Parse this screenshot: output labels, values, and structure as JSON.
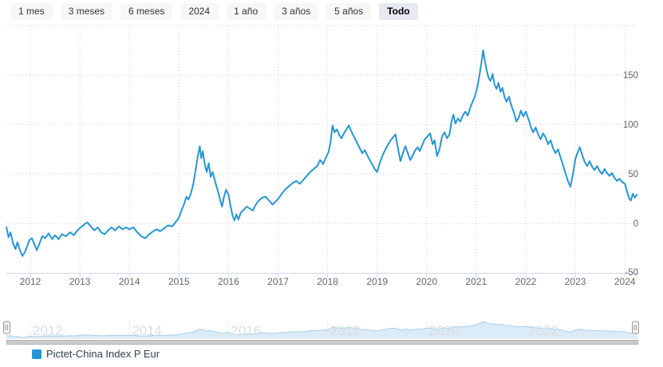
{
  "range_selector": {
    "buttons": [
      {
        "label": "1 mes",
        "selected": false
      },
      {
        "label": "3 meses",
        "selected": false
      },
      {
        "label": "6 meses",
        "selected": false
      },
      {
        "label": "2024",
        "selected": false
      },
      {
        "label": "1 año",
        "selected": false
      },
      {
        "label": "3 años",
        "selected": false
      },
      {
        "label": "5 años",
        "selected": false
      },
      {
        "label": "Todo",
        "selected": true
      }
    ]
  },
  "legend": {
    "items": [
      {
        "label": "Pictet-China Index P Eur",
        "color": "#2796d3"
      }
    ]
  },
  "colors": {
    "series": "#2796d3",
    "grid_dots": "#cccccc",
    "axis_line": "#ccd6eb",
    "tick_label": "#666666",
    "navigator_fill": "#dcebf8",
    "navigator_line": "#a6d0ed",
    "navigator_grid": "#ededed",
    "navigator_label": "#d9dee3",
    "scrollbar_thumb": "#cccccc",
    "scrollbar_border": "#b3b3b3",
    "scrollbar_track": "#f2f2f2",
    "handle_fill": "#f2f2f2",
    "handle_stroke": "#999999"
  },
  "chart_data": {
    "type": "line",
    "title": "",
    "xlabel": "",
    "ylabel": "",
    "grid": "dotted",
    "legend_position": "bottom-left",
    "xlim": [
      2011.45,
      2024.3
    ],
    "ylim": [
      -50,
      200
    ],
    "x_ticks": [
      2012,
      2013,
      2014,
      2015,
      2016,
      2017,
      2018,
      2019,
      2020,
      2021,
      2022,
      2023,
      2024
    ],
    "y_ticks": [
      150,
      100,
      50,
      0,
      -50
    ],
    "grid_values": [
      200,
      150,
      100,
      50,
      0
    ],
    "navigator_ticks": [
      2012,
      2014,
      2016,
      2018,
      2020,
      2022
    ],
    "series": [
      {
        "name": "Pictet-China Index P Eur",
        "color": "#2796d3",
        "points": [
          [
            2011.52,
            -4
          ],
          [
            2011.56,
            -14
          ],
          [
            2011.6,
            -9
          ],
          [
            2011.65,
            -20
          ],
          [
            2011.7,
            -26
          ],
          [
            2011.74,
            -19
          ],
          [
            2011.79,
            -27
          ],
          [
            2011.84,
            -33
          ],
          [
            2011.89,
            -29
          ],
          [
            2011.93,
            -24
          ],
          [
            2011.98,
            -17
          ],
          [
            2012.03,
            -15
          ],
          [
            2012.08,
            -21
          ],
          [
            2012.13,
            -27
          ],
          [
            2012.18,
            -21
          ],
          [
            2012.24,
            -13
          ],
          [
            2012.3,
            -15
          ],
          [
            2012.37,
            -10
          ],
          [
            2012.44,
            -16
          ],
          [
            2012.5,
            -12
          ],
          [
            2012.57,
            -16
          ],
          [
            2012.64,
            -11
          ],
          [
            2012.72,
            -13
          ],
          [
            2012.8,
            -9
          ],
          [
            2012.88,
            -12
          ],
          [
            2012.95,
            -7
          ],
          [
            2013.02,
            -4
          ],
          [
            2013.09,
            -1
          ],
          [
            2013.15,
            1
          ],
          [
            2013.22,
            -3
          ],
          [
            2013.29,
            -7
          ],
          [
            2013.36,
            -4
          ],
          [
            2013.43,
            -9
          ],
          [
            2013.5,
            -11
          ],
          [
            2013.57,
            -7
          ],
          [
            2013.64,
            -4
          ],
          [
            2013.71,
            -7
          ],
          [
            2013.79,
            -3
          ],
          [
            2013.86,
            -6
          ],
          [
            2013.93,
            -4
          ],
          [
            2014.0,
            -6
          ],
          [
            2014.08,
            -4
          ],
          [
            2014.16,
            -9
          ],
          [
            2014.24,
            -13
          ],
          [
            2014.32,
            -15
          ],
          [
            2014.4,
            -11
          ],
          [
            2014.48,
            -8
          ],
          [
            2014.55,
            -6
          ],
          [
            2014.62,
            -8
          ],
          [
            2014.7,
            -5
          ],
          [
            2014.78,
            -2
          ],
          [
            2014.86,
            -3
          ],
          [
            2014.93,
            1
          ],
          [
            2015.0,
            6
          ],
          [
            2015.05,
            13
          ],
          [
            2015.1,
            19
          ],
          [
            2015.15,
            27
          ],
          [
            2015.19,
            24
          ],
          [
            2015.24,
            30
          ],
          [
            2015.29,
            40
          ],
          [
            2015.34,
            55
          ],
          [
            2015.38,
            68
          ],
          [
            2015.42,
            78
          ],
          [
            2015.45,
            66
          ],
          [
            2015.48,
            73
          ],
          [
            2015.52,
            60
          ],
          [
            2015.56,
            52
          ],
          [
            2015.6,
            61
          ],
          [
            2015.64,
            47
          ],
          [
            2015.68,
            52
          ],
          [
            2015.72,
            44
          ],
          [
            2015.76,
            37
          ],
          [
            2015.8,
            30
          ],
          [
            2015.84,
            22
          ],
          [
            2015.87,
            17
          ],
          [
            2015.91,
            27
          ],
          [
            2015.95,
            34
          ],
          [
            2016.0,
            29
          ],
          [
            2016.04,
            18
          ],
          [
            2016.08,
            8
          ],
          [
            2016.12,
            3
          ],
          [
            2016.16,
            9
          ],
          [
            2016.2,
            4
          ],
          [
            2016.25,
            11
          ],
          [
            2016.31,
            14
          ],
          [
            2016.37,
            17
          ],
          [
            2016.43,
            15
          ],
          [
            2016.49,
            13
          ],
          [
            2016.55,
            19
          ],
          [
            2016.61,
            23
          ],
          [
            2016.68,
            26
          ],
          [
            2016.75,
            27
          ],
          [
            2016.82,
            23
          ],
          [
            2016.89,
            19
          ],
          [
            2016.95,
            22
          ],
          [
            2017.02,
            26
          ],
          [
            2017.09,
            31
          ],
          [
            2017.16,
            35
          ],
          [
            2017.23,
            38
          ],
          [
            2017.3,
            41
          ],
          [
            2017.37,
            43
          ],
          [
            2017.44,
            40
          ],
          [
            2017.51,
            44
          ],
          [
            2017.58,
            48
          ],
          [
            2017.65,
            52
          ],
          [
            2017.72,
            55
          ],
          [
            2017.79,
            58
          ],
          [
            2017.85,
            64
          ],
          [
            2017.91,
            60
          ],
          [
            2017.96,
            66
          ],
          [
            2018.02,
            72
          ],
          [
            2018.06,
            82
          ],
          [
            2018.1,
            99
          ],
          [
            2018.14,
            92
          ],
          [
            2018.19,
            95
          ],
          [
            2018.24,
            89
          ],
          [
            2018.28,
            86
          ],
          [
            2018.33,
            91
          ],
          [
            2018.38,
            95
          ],
          [
            2018.43,
            99
          ],
          [
            2018.48,
            93
          ],
          [
            2018.53,
            88
          ],
          [
            2018.58,
            83
          ],
          [
            2018.64,
            77
          ],
          [
            2018.7,
            71
          ],
          [
            2018.75,
            74
          ],
          [
            2018.8,
            69
          ],
          [
            2018.85,
            64
          ],
          [
            2018.9,
            60
          ],
          [
            2018.95,
            55
          ],
          [
            2019.0,
            52
          ],
          [
            2019.06,
            62
          ],
          [
            2019.12,
            70
          ],
          [
            2019.19,
            77
          ],
          [
            2019.26,
            83
          ],
          [
            2019.32,
            87
          ],
          [
            2019.37,
            90
          ],
          [
            2019.42,
            76
          ],
          [
            2019.47,
            63
          ],
          [
            2019.52,
            71
          ],
          [
            2019.57,
            78
          ],
          [
            2019.62,
            71
          ],
          [
            2019.67,
            64
          ],
          [
            2019.72,
            69
          ],
          [
            2019.77,
            74
          ],
          [
            2019.82,
            77
          ],
          [
            2019.86,
            73
          ],
          [
            2019.91,
            79
          ],
          [
            2019.96,
            85
          ],
          [
            2020.02,
            88
          ],
          [
            2020.07,
            91
          ],
          [
            2020.12,
            80
          ],
          [
            2020.16,
            84
          ],
          [
            2020.21,
            68
          ],
          [
            2020.26,
            75
          ],
          [
            2020.31,
            88
          ],
          [
            2020.36,
            92
          ],
          [
            2020.41,
            86
          ],
          [
            2020.46,
            90
          ],
          [
            2020.5,
            103
          ],
          [
            2020.54,
            110
          ],
          [
            2020.58,
            101
          ],
          [
            2020.63,
            106
          ],
          [
            2020.68,
            103
          ],
          [
            2020.73,
            109
          ],
          [
            2020.78,
            113
          ],
          [
            2020.83,
            109
          ],
          [
            2020.88,
            117
          ],
          [
            2020.92,
            122
          ],
          [
            2020.97,
            128
          ],
          [
            2021.02,
            137
          ],
          [
            2021.06,
            148
          ],
          [
            2021.1,
            161
          ],
          [
            2021.14,
            175
          ],
          [
            2021.17,
            165
          ],
          [
            2021.21,
            155
          ],
          [
            2021.25,
            147
          ],
          [
            2021.29,
            144
          ],
          [
            2021.33,
            151
          ],
          [
            2021.37,
            140
          ],
          [
            2021.41,
            136
          ],
          [
            2021.45,
            142
          ],
          [
            2021.49,
            133
          ],
          [
            2021.53,
            137
          ],
          [
            2021.57,
            128
          ],
          [
            2021.61,
            123
          ],
          [
            2021.66,
            128
          ],
          [
            2021.71,
            119
          ],
          [
            2021.76,
            112
          ],
          [
            2021.81,
            103
          ],
          [
            2021.86,
            107
          ],
          [
            2021.9,
            114
          ],
          [
            2021.95,
            108
          ],
          [
            2022.0,
            113
          ],
          [
            2022.05,
            106
          ],
          [
            2022.1,
            98
          ],
          [
            2022.15,
            92
          ],
          [
            2022.2,
            97
          ],
          [
            2022.25,
            90
          ],
          [
            2022.3,
            85
          ],
          [
            2022.35,
            91
          ],
          [
            2022.4,
            87
          ],
          [
            2022.45,
            80
          ],
          [
            2022.5,
            84
          ],
          [
            2022.55,
            76
          ],
          [
            2022.6,
            71
          ],
          [
            2022.65,
            75
          ],
          [
            2022.7,
            67
          ],
          [
            2022.75,
            59
          ],
          [
            2022.8,
            51
          ],
          [
            2022.85,
            43
          ],
          [
            2022.9,
            37
          ],
          [
            2022.95,
            49
          ],
          [
            2023.0,
            65
          ],
          [
            2023.05,
            72
          ],
          [
            2023.09,
            77
          ],
          [
            2023.14,
            69
          ],
          [
            2023.19,
            62
          ],
          [
            2023.24,
            58
          ],
          [
            2023.29,
            63
          ],
          [
            2023.34,
            57
          ],
          [
            2023.39,
            54
          ],
          [
            2023.44,
            58
          ],
          [
            2023.49,
            53
          ],
          [
            2023.54,
            50
          ],
          [
            2023.59,
            55
          ],
          [
            2023.64,
            51
          ],
          [
            2023.69,
            48
          ],
          [
            2023.74,
            51
          ],
          [
            2023.79,
            46
          ],
          [
            2023.84,
            43
          ],
          [
            2023.89,
            45
          ],
          [
            2023.94,
            42
          ],
          [
            2024.0,
            40
          ],
          [
            2024.04,
            33
          ],
          [
            2024.08,
            26
          ],
          [
            2024.12,
            23
          ],
          [
            2024.16,
            30
          ],
          [
            2024.2,
            26
          ],
          [
            2024.24,
            29
          ]
        ]
      }
    ]
  }
}
